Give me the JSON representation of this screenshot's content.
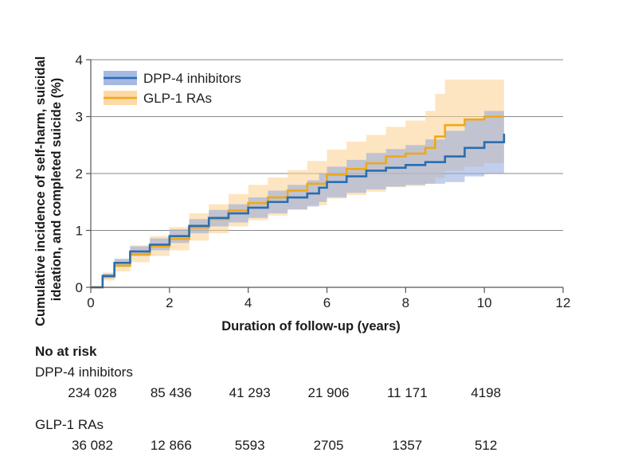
{
  "chart_data": {
    "type": "line",
    "title": "",
    "xlabel": "Duration of follow-up (years)",
    "ylabel_lines": [
      "Cumulative incidence of self-harm, suicidal",
      "ideation, and completed suicide (%)"
    ],
    "xlim": [
      0,
      12
    ],
    "ylim": [
      0,
      4
    ],
    "x_ticks": [
      0,
      2,
      4,
      6,
      8,
      10,
      12
    ],
    "y_ticks": [
      0,
      1,
      2,
      3,
      4
    ],
    "grid": "horizontal",
    "legend_position": "top-left",
    "series": [
      {
        "name": "DPP-4 inhibitors",
        "color": "#2a6db0",
        "band_color": "#8fa8dd",
        "x": [
          0,
          0.3,
          0.6,
          1.0,
          1.5,
          2.0,
          2.5,
          3.0,
          3.5,
          4.0,
          4.5,
          5.0,
          5.5,
          5.8,
          6.0,
          6.5,
          7.0,
          7.5,
          8.0,
          8.5,
          9.0,
          9.5,
          10.0,
          10.5
        ],
        "y": [
          0,
          0.2,
          0.43,
          0.63,
          0.75,
          0.9,
          1.08,
          1.22,
          1.3,
          1.4,
          1.5,
          1.58,
          1.65,
          1.75,
          1.85,
          1.95,
          2.05,
          2.1,
          2.15,
          2.2,
          2.3,
          2.45,
          2.55,
          2.7
        ],
        "lower": [
          0,
          0.16,
          0.36,
          0.55,
          0.65,
          0.78,
          0.95,
          1.07,
          1.14,
          1.22,
          1.3,
          1.37,
          1.42,
          1.5,
          1.58,
          1.66,
          1.72,
          1.77,
          1.8,
          1.82,
          1.85,
          1.95,
          2.0,
          2.12
        ],
        "upper": [
          0,
          0.24,
          0.5,
          0.72,
          0.86,
          1.02,
          1.2,
          1.36,
          1.46,
          1.58,
          1.7,
          1.8,
          1.88,
          2.0,
          2.12,
          2.24,
          2.36,
          2.43,
          2.5,
          2.6,
          2.75,
          2.95,
          3.1,
          3.28
        ]
      },
      {
        "name": "GLP-1 RAs",
        "color": "#f0a818",
        "band_color": "#fcd08e",
        "x": [
          0,
          0.3,
          0.6,
          1.0,
          1.5,
          2.0,
          2.5,
          3.0,
          3.5,
          4.0,
          4.5,
          5.0,
          5.5,
          6.0,
          6.5,
          7.0,
          7.5,
          8.0,
          8.5,
          8.75,
          9.0,
          9.5,
          10.0,
          10.5
        ],
        "y": [
          0,
          0.18,
          0.38,
          0.58,
          0.72,
          0.85,
          1.05,
          1.2,
          1.35,
          1.48,
          1.58,
          1.7,
          1.82,
          1.98,
          2.08,
          2.18,
          2.3,
          2.35,
          2.45,
          2.65,
          2.85,
          2.95,
          3.0,
          3.0
        ],
        "lower": [
          0,
          0.12,
          0.28,
          0.44,
          0.55,
          0.65,
          0.82,
          0.95,
          1.07,
          1.18,
          1.26,
          1.36,
          1.44,
          1.56,
          1.62,
          1.68,
          1.76,
          1.78,
          1.82,
          1.92,
          2.05,
          2.12,
          2.18,
          2.18
        ],
        "upper": [
          0,
          0.26,
          0.5,
          0.74,
          0.9,
          1.06,
          1.3,
          1.46,
          1.64,
          1.8,
          1.93,
          2.06,
          2.22,
          2.42,
          2.56,
          2.68,
          2.82,
          2.93,
          3.1,
          3.4,
          3.65,
          3.65,
          3.65,
          3.65
        ]
      }
    ]
  },
  "risk_table": {
    "title": "No at risk",
    "groups": [
      {
        "name": "DPP-4 inhibitors",
        "values": [
          "234 028",
          "85 436",
          "41 293",
          "21 906",
          "11 171",
          "4198"
        ]
      },
      {
        "name": "GLP-1 RAs",
        "values": [
          "36 082",
          "12 866",
          "5593",
          "2705",
          "1357",
          "512"
        ]
      }
    ]
  }
}
